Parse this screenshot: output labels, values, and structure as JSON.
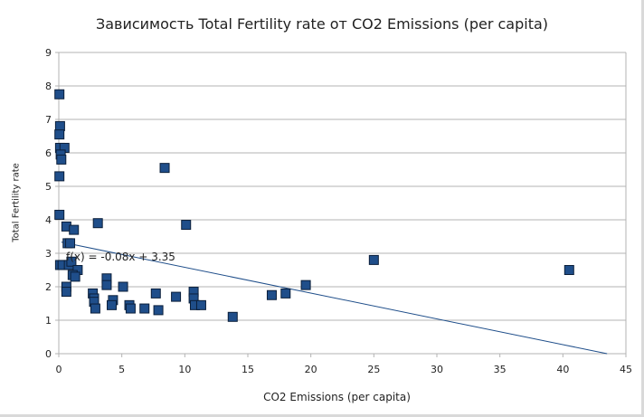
{
  "chart_data": {
    "type": "scatter",
    "title": "Зависимость Total Fertility rate от CO2 Emissions (per capita)",
    "xlabel": "CO2 Emissions (per capita)",
    "ylabel": "Total Fertility rate",
    "xlim": [
      0,
      45
    ],
    "ylim": [
      0,
      9
    ],
    "xticks": [
      0,
      5,
      10,
      15,
      20,
      25,
      30,
      35,
      40,
      45
    ],
    "yticks": [
      0,
      1,
      2,
      3,
      4,
      5,
      6,
      7,
      8,
      9
    ],
    "grid": "horizontal",
    "legend": "none",
    "marker_color": "#1f4e8a",
    "trend_color": "#1f4e8a",
    "trendline": {
      "equation": "f(x) = -0.08x + 3.35",
      "slope": -0.077,
      "intercept": 3.35
    },
    "points": [
      {
        "x": 0.05,
        "y": 7.75
      },
      {
        "x": 0.1,
        "y": 6.8
      },
      {
        "x": 0.05,
        "y": 6.55
      },
      {
        "x": 0.1,
        "y": 6.15
      },
      {
        "x": 0.45,
        "y": 6.15
      },
      {
        "x": 0.15,
        "y": 5.95
      },
      {
        "x": 0.2,
        "y": 5.8
      },
      {
        "x": 0.05,
        "y": 5.3
      },
      {
        "x": 0.05,
        "y": 4.15
      },
      {
        "x": 3.1,
        "y": 3.9
      },
      {
        "x": 10.1,
        "y": 3.85
      },
      {
        "x": 0.6,
        "y": 3.8
      },
      {
        "x": 1.2,
        "y": 3.7
      },
      {
        "x": 0.7,
        "y": 3.3
      },
      {
        "x": 0.9,
        "y": 3.3
      },
      {
        "x": 0.1,
        "y": 2.65
      },
      {
        "x": 0.3,
        "y": 2.65
      },
      {
        "x": 0.8,
        "y": 2.65
      },
      {
        "x": 1.0,
        "y": 2.75
      },
      {
        "x": 1.5,
        "y": 2.5
      },
      {
        "x": 1.1,
        "y": 2.35
      },
      {
        "x": 1.3,
        "y": 2.3
      },
      {
        "x": 3.8,
        "y": 2.25
      },
      {
        "x": 3.8,
        "y": 2.05
      },
      {
        "x": 5.1,
        "y": 2.0
      },
      {
        "x": 0.6,
        "y": 2.0
      },
      {
        "x": 0.6,
        "y": 1.85
      },
      {
        "x": 2.7,
        "y": 1.8
      },
      {
        "x": 7.7,
        "y": 1.8
      },
      {
        "x": 10.7,
        "y": 1.85
      },
      {
        "x": 9.3,
        "y": 1.7
      },
      {
        "x": 2.8,
        "y": 1.65
      },
      {
        "x": 2.8,
        "y": 1.55
      },
      {
        "x": 4.3,
        "y": 1.6
      },
      {
        "x": 10.7,
        "y": 1.65
      },
      {
        "x": 4.2,
        "y": 1.45
      },
      {
        "x": 5.6,
        "y": 1.45
      },
      {
        "x": 5.7,
        "y": 1.35
      },
      {
        "x": 2.9,
        "y": 1.35
      },
      {
        "x": 6.8,
        "y": 1.35
      },
      {
        "x": 7.9,
        "y": 1.3
      },
      {
        "x": 10.8,
        "y": 1.45
      },
      {
        "x": 11.3,
        "y": 1.45
      },
      {
        "x": 13.8,
        "y": 1.1
      },
      {
        "x": 16.9,
        "y": 1.75
      },
      {
        "x": 18.0,
        "y": 1.8
      },
      {
        "x": 19.6,
        "y": 2.05
      },
      {
        "x": 25.0,
        "y": 2.8
      },
      {
        "x": 40.5,
        "y": 2.5
      },
      {
        "x": 8.4,
        "y": 5.55
      }
    ]
  }
}
